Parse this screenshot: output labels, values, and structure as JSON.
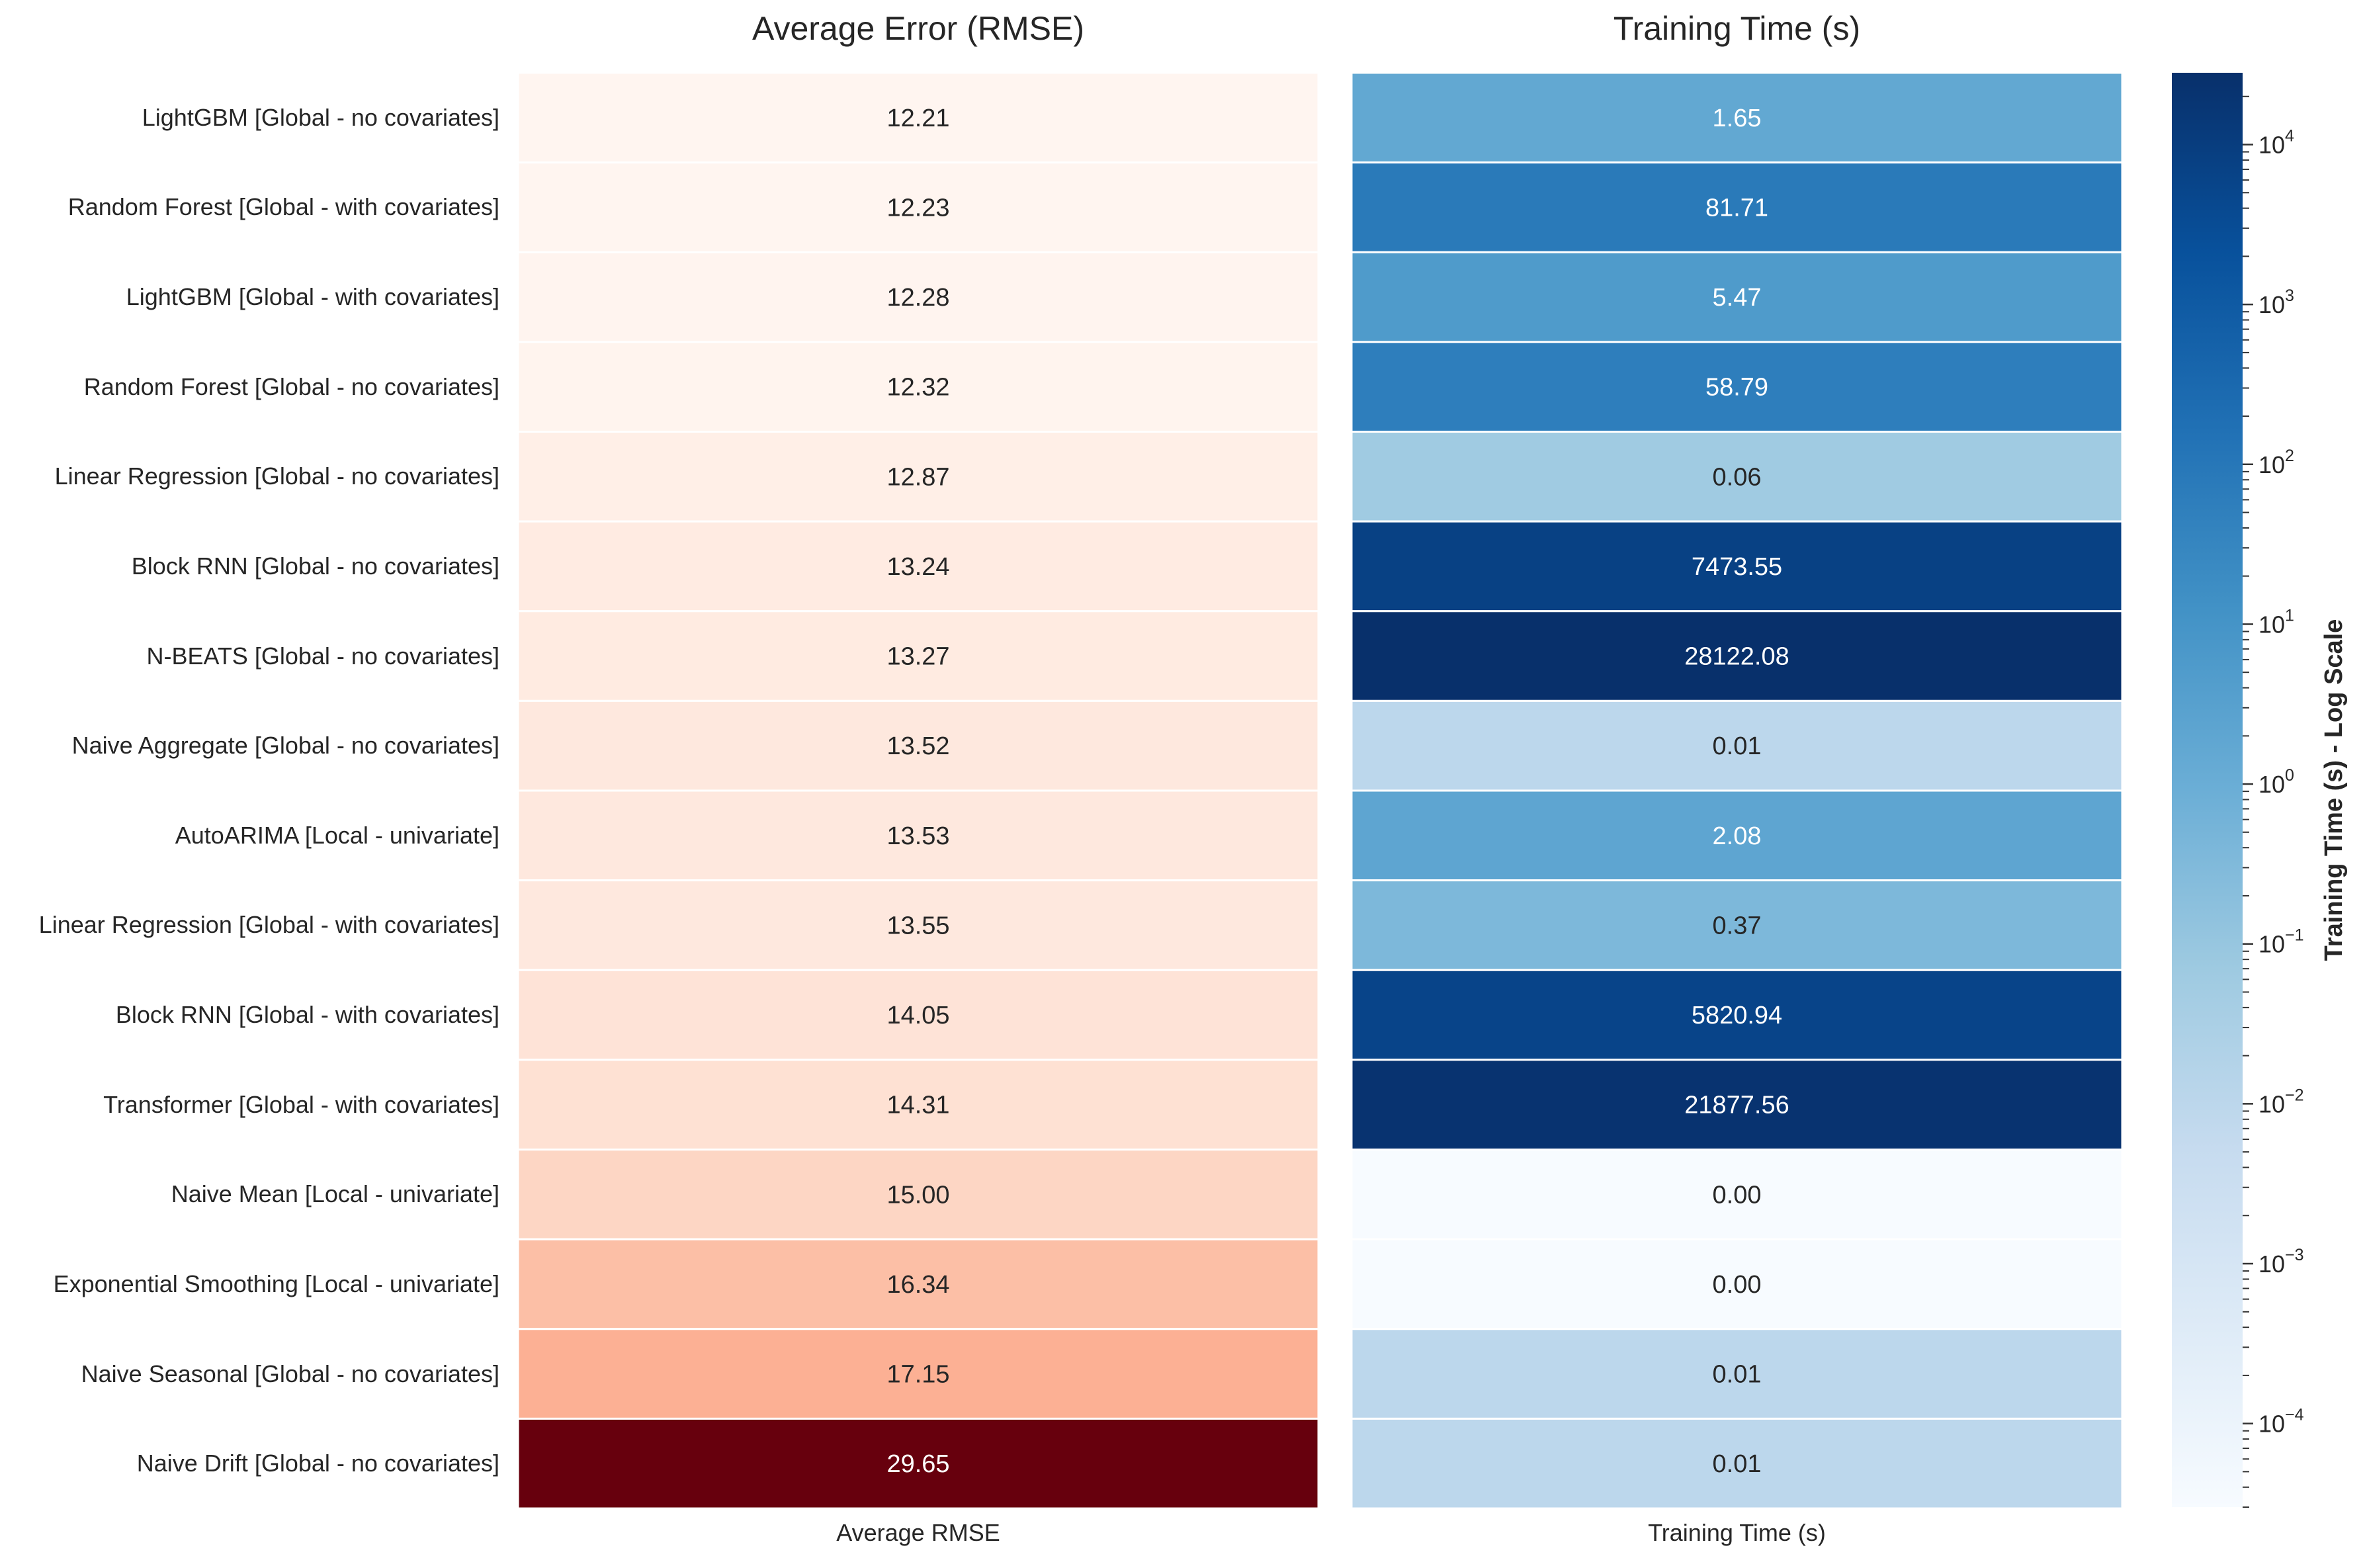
{
  "chart_data": [
    {
      "type": "heatmap",
      "title": "Average Error (RMSE)",
      "xlabel": "",
      "column_label": "Average RMSE",
      "colormap": "Reds",
      "rows": [
        "LightGBM [Global - no covariates]",
        "Random Forest [Global - with covariates]",
        "LightGBM [Global - with covariates]",
        "Random Forest [Global - no covariates]",
        "Linear Regression [Global - no covariates]",
        "Block RNN [Global - no covariates]",
        "N-BEATS [Global - no covariates]",
        "Naive Aggregate [Global - no covariates]",
        "AutoARIMA [Local - univariate]",
        "Linear Regression [Global - with covariates]",
        "Block RNN [Global - with covariates]",
        "Transformer [Global - with covariates]",
        "Naive Mean [Local - univariate]",
        "Exponential Smoothing [Local - univariate]",
        "Naive Seasonal [Global - no covariates]",
        "Naive Drift [Global - no covariates]"
      ],
      "values": [
        12.21,
        12.23,
        12.28,
        12.32,
        12.87,
        13.24,
        13.27,
        13.52,
        13.53,
        13.55,
        14.05,
        14.31,
        15.0,
        16.34,
        17.15,
        29.65
      ],
      "labels": [
        "12.21",
        "12.23",
        "12.28",
        "12.32",
        "12.87",
        "13.24",
        "13.27",
        "13.52",
        "13.53",
        "13.55",
        "14.05",
        "14.31",
        "15.00",
        "16.34",
        "17.15",
        "29.65"
      ]
    },
    {
      "type": "heatmap",
      "title": "Training Time (s)",
      "column_label": "Training Time (s)",
      "colormap": "Blues",
      "log_scale": true,
      "values": [
        1.65,
        81.71,
        5.47,
        58.79,
        0.06,
        7473.55,
        28122.08,
        0.01,
        2.08,
        0.37,
        5820.94,
        21877.56,
        0.0,
        0.0,
        0.01,
        0.01
      ],
      "labels": [
        "1.65",
        "81.71",
        "5.47",
        "58.79",
        "0.06",
        "7473.55",
        "28122.08",
        "0.01",
        "2.08",
        "0.37",
        "5820.94",
        "21877.56",
        "0.00",
        "0.00",
        "0.01",
        "0.01"
      ],
      "colorbar": {
        "label": "Training Time (s) - Log Scale",
        "scale": "log",
        "range": [
          3e-05,
          28122.08
        ],
        "ticks": [
          {
            "base": "10",
            "exp": "−4"
          },
          {
            "base": "10",
            "exp": "−3"
          },
          {
            "base": "10",
            "exp": "−2"
          },
          {
            "base": "10",
            "exp": "−1"
          },
          {
            "base": "10",
            "exp": "0"
          },
          {
            "base": "10",
            "exp": "1"
          },
          {
            "base": "10",
            "exp": "2"
          },
          {
            "base": "10",
            "exp": "3"
          },
          {
            "base": "10",
            "exp": "4"
          }
        ]
      }
    }
  ]
}
